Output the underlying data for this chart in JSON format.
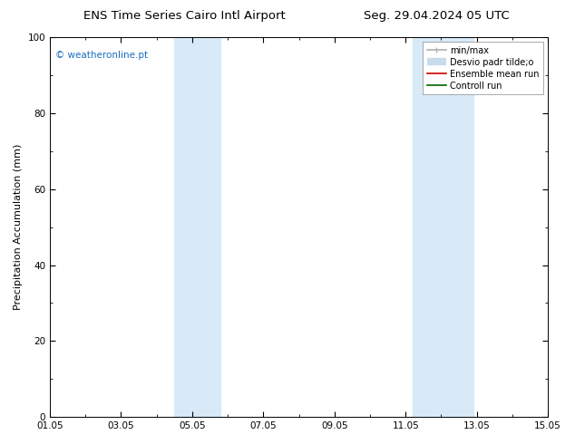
{
  "title_left": "ENS Time Series Cairo Intl Airport",
  "title_right": "Seg. 29.04.2024 05 UTC",
  "ylabel": "Precipitation Accumulation (mm)",
  "watermark": "© weatheronline.pt",
  "watermark_color": "#1a6ebf",
  "ylim": [
    0,
    100
  ],
  "xtick_labels": [
    "01.05",
    "03.05",
    "05.05",
    "07.05",
    "09.05",
    "11.05",
    "13.05",
    "15.05"
  ],
  "xtick_positions": [
    1,
    3,
    5,
    7,
    9,
    11,
    13,
    15
  ],
  "ytick_positions": [
    0,
    20,
    40,
    60,
    80,
    100
  ],
  "shaded_regions": [
    {
      "xmin": 4.5,
      "xmax": 5.8,
      "color": "#d8eaf8"
    },
    {
      "xmin": 11.2,
      "xmax": 12.9,
      "color": "#d8eaf8"
    }
  ],
  "legend_entries": [
    {
      "label": "min/max",
      "color": "#b0b0b0",
      "lw": 1.2
    },
    {
      "label": "Desvio padr tilde;o",
      "color": "#c8dced",
      "lw": 6
    },
    {
      "label": "Ensemble mean run",
      "color": "#cc0000",
      "lw": 1.2
    },
    {
      "label": "Controll run",
      "color": "#006600",
      "lw": 1.2
    }
  ],
  "background_color": "#ffffff",
  "plot_background": "#ffffff",
  "title_fontsize": 9.5,
  "label_fontsize": 8,
  "tick_fontsize": 7.5,
  "legend_fontsize": 7,
  "watermark_fontsize": 7.5
}
